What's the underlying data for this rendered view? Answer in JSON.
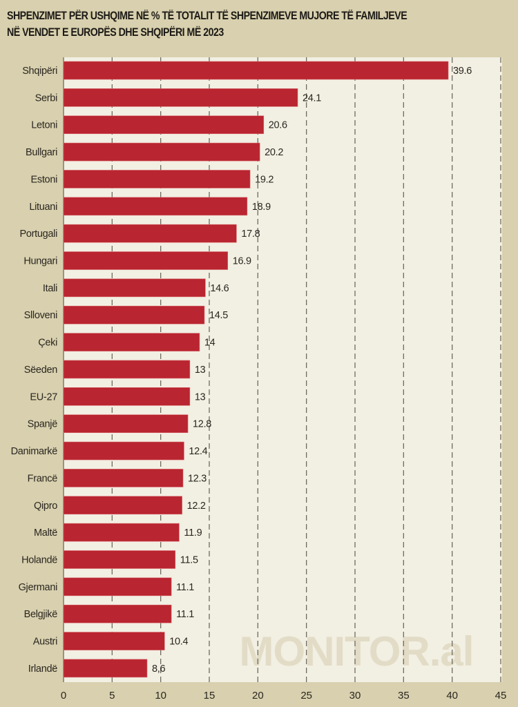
{
  "title_lines": [
    "SHPENZIMET PËR USHQIME NË % TË TOTALIT TË SHPENZIMEVE MUJORE TË FAMILJEVE",
    "NË VENDET E EUROPËS DHE SHQIPËRI MË 2023"
  ],
  "watermark": "MONITOR.al",
  "colors": {
    "background": "#d8d0ae",
    "plot_background": "#f2efe3",
    "bar": "#b92530",
    "grid": "#6e6a60"
  },
  "chart_data": {
    "type": "bar",
    "orientation": "horizontal",
    "title": "SHPENZIMET PËR USHQIME NË % TË TOTALIT TË SHPENZIMEVE MUJORE TË FAMILJEVE NË VENDET E EUROPËS DHE SHQIPËRI MË 2023",
    "xlabel": "",
    "ylabel": "",
    "xlim": [
      0,
      45
    ],
    "grid": true,
    "x_ticks": [
      "0",
      "5",
      "10",
      "15",
      "20",
      "25",
      "30",
      "35",
      "40",
      "45"
    ],
    "categories": [
      "Shqipëri",
      "Serbi",
      "Letoni",
      "Bullgari",
      "Estoni",
      "Lituani",
      "Portugali",
      "Hungari",
      "Itali",
      "Slloveni",
      "Çeki",
      "Sëeden",
      "EU-27",
      "Spanjë",
      "Danimarkë",
      "Francë",
      "Qipro",
      "Maltë",
      "Holandë",
      "Gjermani",
      "Belgjikë",
      "Austri",
      "Irlandë"
    ],
    "values": [
      39.6,
      24.1,
      20.6,
      20.2,
      19.2,
      18.9,
      17.8,
      16.9,
      14.6,
      14.5,
      14,
      13,
      13,
      12.8,
      12.4,
      12.3,
      12.2,
      11.9,
      11.5,
      11.1,
      11.1,
      10.4,
      8.6
    ],
    "value_labels": [
      "39.6",
      "24.1",
      "20.6",
      "20.2",
      "19.2",
      "18.9",
      "17.8",
      "16.9",
      "14.6",
      "14.5",
      "14",
      "13",
      "13",
      "12.8",
      "12.4",
      "12.3",
      "12.2",
      "11.9",
      "11.5",
      "11.1",
      "11.1",
      "10.4",
      "8,6"
    ]
  }
}
